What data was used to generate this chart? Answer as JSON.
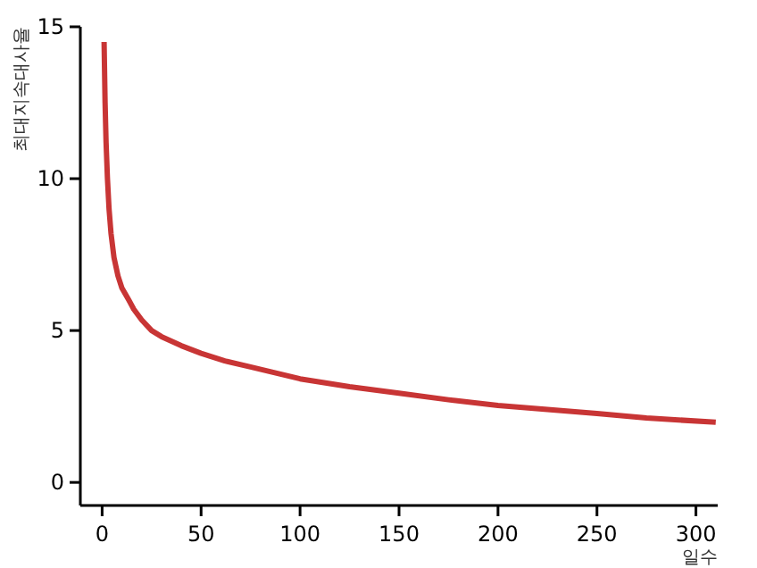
{
  "chart_data": {
    "type": "line",
    "xlabel": "일수",
    "ylabel": "최대지속대사율",
    "x": [
      1,
      1.5,
      2,
      2.7,
      3.5,
      4.5,
      6,
      8,
      10,
      13.5,
      16,
      20,
      25,
      30,
      40,
      50,
      62,
      75,
      100,
      125,
      150,
      175,
      200,
      225,
      250,
      275,
      310
    ],
    "series": [
      {
        "color": "#c83535",
        "values": [
          14.5,
          12.5,
          11.2,
          10.0,
          9.0,
          8.2,
          7.4,
          6.8,
          6.4,
          6.0,
          5.7,
          5.35,
          5.0,
          4.8,
          4.5,
          4.25,
          4.0,
          3.8,
          3.41,
          3.15,
          2.94,
          2.72,
          2.53,
          2.4,
          2.27,
          2.12,
          1.98
        ]
      }
    ],
    "xlim": [
      -11,
      311
    ],
    "ylim": [
      -0.76,
      15
    ],
    "xticks": [
      0,
      50,
      100,
      150,
      200,
      250,
      300
    ],
    "yticks": [
      0,
      5,
      10,
      15
    ],
    "grid": false,
    "marker": "none",
    "line_style": "solid"
  }
}
